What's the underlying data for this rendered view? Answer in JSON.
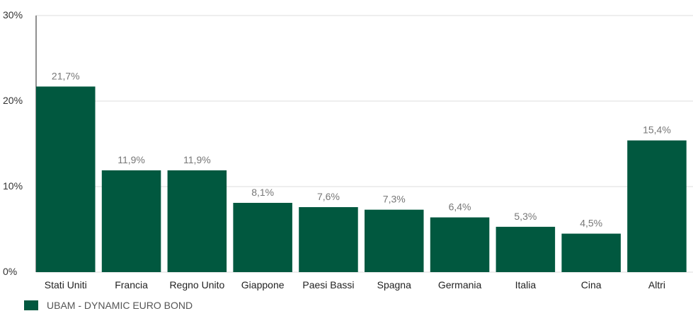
{
  "chart_data": {
    "type": "bar",
    "categories": [
      "Stati Uniti",
      "Francia",
      "Regno Unito",
      "Giappone",
      "Paesi Bassi",
      "Spagna",
      "Germania",
      "Italia",
      "Cina",
      "Altri"
    ],
    "series": [
      {
        "name": "UBAM - DYNAMIC EURO BOND",
        "values": [
          21.7,
          11.9,
          11.9,
          8.1,
          7.6,
          7.3,
          6.4,
          5.3,
          4.5,
          15.4
        ],
        "color": "#01583f"
      }
    ],
    "data_labels": [
      "21,7%",
      "11,9%",
      "11,9%",
      "8,1%",
      "7,6%",
      "7,3%",
      "6,4%",
      "5,3%",
      "4,5%",
      "15,4%"
    ],
    "yticks": [
      0,
      10,
      20,
      30
    ],
    "ytick_labels": [
      "0%",
      "10%",
      "20%",
      "30%"
    ],
    "ylim": [
      0,
      30
    ],
    "grid": true,
    "legend_position": "bottom-left",
    "gridline_color": "#dddddd"
  }
}
